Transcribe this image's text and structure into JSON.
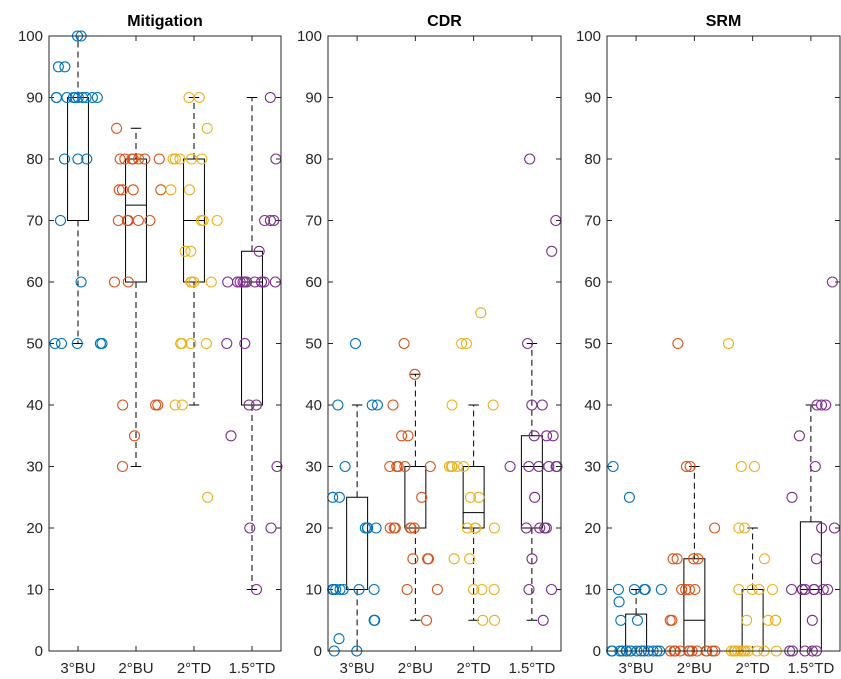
{
  "chart_data": [
    {
      "type": "box",
      "title": "Mitigation",
      "categories": [
        "3°BU",
        "2°BU",
        "2°TD",
        "1.5°TD"
      ],
      "ylim": [
        0,
        100
      ],
      "yticks": [
        0,
        10,
        20,
        30,
        40,
        50,
        60,
        70,
        80,
        90,
        100
      ],
      "grid": false,
      "boxes": [
        {
          "whisker_low": 50,
          "q1": 70,
          "median": 90,
          "q3": 90,
          "whisker_high": 100
        },
        {
          "whisker_low": 30,
          "q1": 60,
          "median": 72.5,
          "q3": 80,
          "whisker_high": 85
        },
        {
          "whisker_low": 40,
          "q1": 60,
          "median": 70,
          "q3": 80,
          "whisker_high": 90
        },
        {
          "whisker_low": 10,
          "q1": 40,
          "median": 60,
          "q3": 65,
          "whisker_high": 90
        }
      ],
      "points": [
        {
          "category": "3°BU",
          "values": [
            100,
            100,
            95,
            95,
            90,
            90,
            90,
            90,
            90,
            90,
            90,
            90,
            90,
            90,
            80,
            80,
            80,
            70,
            60,
            50,
            50,
            50,
            50,
            50
          ]
        },
        {
          "category": "2°BU",
          "values": [
            85,
            80,
            80,
            80,
            80,
            80,
            80,
            80,
            75,
            75,
            75,
            75,
            70,
            70,
            70,
            70,
            70,
            60,
            60,
            40,
            40,
            40,
            35,
            30
          ]
        },
        {
          "category": "2°TD",
          "values": [
            90,
            90,
            85,
            80,
            80,
            80,
            80,
            80,
            75,
            75,
            70,
            70,
            70,
            65,
            65,
            60,
            60,
            60,
            60,
            50,
            50,
            50,
            50,
            40,
            40,
            25
          ]
        },
        {
          "category": "1.5°TD",
          "values": [
            90,
            80,
            70,
            70,
            70,
            65,
            60,
            60,
            60,
            60,
            60,
            60,
            60,
            60,
            60,
            60,
            50,
            50,
            40,
            40,
            35,
            30,
            20,
            20,
            10
          ]
        }
      ]
    },
    {
      "type": "box",
      "title": "CDR",
      "categories": [
        "3°BU",
        "2°BU",
        "2°TD",
        "1.5°TD"
      ],
      "ylim": [
        0,
        100
      ],
      "yticks": [
        0,
        10,
        20,
        30,
        40,
        50,
        60,
        70,
        80,
        90,
        100
      ],
      "grid": false,
      "boxes": [
        {
          "whisker_low": 0,
          "q1": 10,
          "median": 10,
          "q3": 25,
          "whisker_high": 40
        },
        {
          "whisker_low": 5,
          "q1": 20,
          "median": 20,
          "q3": 30,
          "whisker_high": 45
        },
        {
          "whisker_low": 5,
          "q1": 20,
          "median": 22.5,
          "q3": 30,
          "whisker_high": 40
        },
        {
          "whisker_low": 5,
          "q1": 20,
          "median": 30,
          "q3": 35,
          "whisker_high": 50
        }
      ],
      "points": [
        {
          "category": "3°BU",
          "values": [
            50,
            40,
            40,
            40,
            30,
            25,
            25,
            20,
            20,
            20,
            20,
            10,
            10,
            10,
            10,
            10,
            10,
            10,
            5,
            5,
            2,
            0,
            0
          ]
        },
        {
          "category": "2°BU",
          "values": [
            50,
            45,
            40,
            35,
            35,
            30,
            30,
            30,
            30,
            30,
            25,
            20,
            20,
            20,
            20,
            20,
            20,
            15,
            15,
            15,
            10,
            10,
            5
          ]
        },
        {
          "category": "2°TD",
          "values": [
            55,
            50,
            50,
            40,
            40,
            30,
            30,
            30,
            30,
            30,
            25,
            25,
            20,
            20,
            20,
            20,
            15,
            15,
            10,
            10,
            10,
            5,
            5
          ]
        },
        {
          "category": "1.5°TD",
          "values": [
            80,
            70,
            65,
            50,
            40,
            40,
            35,
            35,
            35,
            30,
            30,
            30,
            30,
            30,
            30,
            25,
            20,
            20,
            20,
            20,
            15,
            10,
            10,
            5
          ]
        }
      ]
    },
    {
      "type": "box",
      "title": "SRM",
      "categories": [
        "3°BU",
        "2°BU",
        "2°TD",
        "1.5°TD"
      ],
      "ylim": [
        0,
        100
      ],
      "yticks": [
        0,
        10,
        20,
        30,
        40,
        50,
        60,
        70,
        80,
        90,
        100
      ],
      "grid": false,
      "boxes": [
        {
          "whisker_low": 0,
          "q1": 0,
          "median": 0,
          "q3": 6,
          "whisker_high": 10
        },
        {
          "whisker_low": 0,
          "q1": 0,
          "median": 5,
          "q3": 15,
          "whisker_high": 30
        },
        {
          "whisker_low": 0,
          "q1": 0,
          "median": 0,
          "q3": 10,
          "whisker_high": 20
        },
        {
          "whisker_low": 0,
          "q1": 0,
          "median": 10,
          "q3": 21,
          "whisker_high": 40
        }
      ],
      "points": [
        {
          "category": "3°BU",
          "values": [
            30,
            25,
            10,
            10,
            10,
            10,
            10,
            8,
            5,
            5,
            0,
            0,
            0,
            0,
            0,
            0,
            0,
            0,
            0,
            0,
            0,
            0,
            0,
            0,
            0
          ]
        },
        {
          "category": "2°BU",
          "values": [
            50,
            30,
            30,
            20,
            15,
            15,
            15,
            15,
            10,
            10,
            10,
            10,
            5,
            5,
            0,
            0,
            0,
            0,
            0,
            0,
            0,
            0,
            0,
            0,
            0,
            0
          ]
        },
        {
          "category": "2°TD",
          "values": [
            50,
            30,
            30,
            20,
            20,
            15,
            10,
            10,
            10,
            10,
            5,
            5,
            5,
            5,
            0,
            0,
            0,
            0,
            0,
            0,
            0,
            0,
            0,
            0,
            0
          ]
        },
        {
          "category": "1.5°TD",
          "values": [
            60,
            40,
            40,
            40,
            35,
            30,
            25,
            20,
            20,
            15,
            10,
            10,
            10,
            10,
            10,
            10,
            10,
            10,
            5,
            0,
            0,
            0,
            0,
            0
          ]
        }
      ]
    }
  ],
  "colors": {
    "category_colors": [
      "#0072BD",
      "#D95319",
      "#EDB120",
      "#7E2F8E"
    ],
    "axis": "#262626",
    "box": "#000000"
  }
}
